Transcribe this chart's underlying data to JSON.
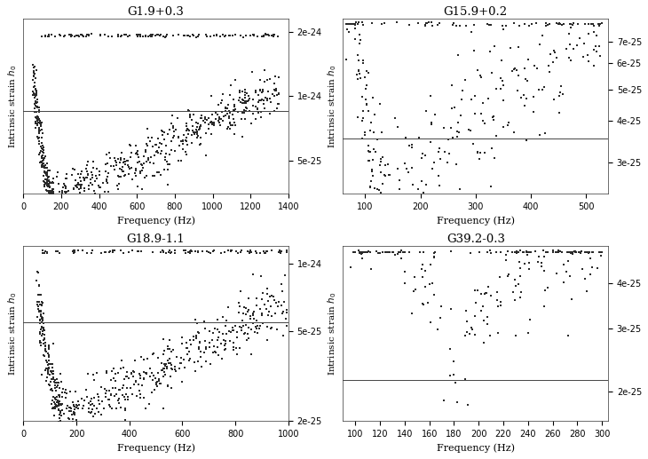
{
  "panels": [
    {
      "title": "G1.9+0.3",
      "xmin": 0,
      "xmax": 1400,
      "ymin": 3.5e-25,
      "ymax": 2.3e-24,
      "hline": 8.5e-25,
      "freq_range": [
        50,
        1350
      ],
      "noise_floor_freq": 160,
      "noise_floor_val": 3.5e-25,
      "power_low": 2.5,
      "power_high": 1.5,
      "scatter_sigma": 0.12,
      "n_points": 700,
      "clipped_yval": 1.92e-24,
      "clipped_n": 120,
      "clipped_freq_min": 50,
      "clipped_freq_max": 1350,
      "yticks": [
        5e-25,
        1e-24,
        2e-24
      ],
      "xticks": [
        0,
        200,
        400,
        600,
        800,
        1000,
        1200,
        1400
      ],
      "seed": 42
    },
    {
      "title": "G15.9+0.2",
      "xmin": 60,
      "xmax": 540,
      "ymin": 2.4e-25,
      "ymax": 8.2e-25,
      "hline": 3.55e-25,
      "freq_range": [
        65,
        530
      ],
      "noise_floor_freq": 140,
      "noise_floor_val": 2.55e-25,
      "power_low": 2.0,
      "power_high": 1.3,
      "scatter_sigma": 0.25,
      "n_points": 300,
      "clipped_yval": 7.9e-25,
      "clipped_n": 50,
      "clipped_freq_min": 65,
      "clipped_freq_max": 530,
      "yticks": [
        3e-25,
        4e-25,
        5e-25,
        6e-25,
        7e-25
      ],
      "xticks": [
        100,
        200,
        300,
        400,
        500
      ],
      "seed": 43
    },
    {
      "title": "G18.9-1.1",
      "xmin": 0,
      "xmax": 1000,
      "ymin": 2e-25,
      "ymax": 1.2e-24,
      "hline": 5.5e-25,
      "freq_range": [
        50,
        1000
      ],
      "noise_floor_freq": 150,
      "noise_floor_val": 2.2e-25,
      "power_low": 2.5,
      "power_high": 1.5,
      "scatter_sigma": 0.15,
      "n_points": 600,
      "clipped_yval": 1.13e-24,
      "clipped_n": 100,
      "clipped_freq_min": 50,
      "clipped_freq_max": 1000,
      "yticks": [
        2e-25,
        5e-25,
        1e-24
      ],
      "xticks": [
        0,
        200,
        400,
        600,
        800,
        1000
      ],
      "seed": 44
    },
    {
      "title": "G39.2-0.3",
      "xmin": 90,
      "xmax": 305,
      "ymin": 1.65e-25,
      "ymax": 5.1e-25,
      "hline": 2.15e-25,
      "freq_range": [
        95,
        300
      ],
      "noise_floor_freq": 180,
      "noise_floor_val": 1.85e-25,
      "power_low": 0.5,
      "power_high": 0.5,
      "scatter_sigma": 0.2,
      "n_points": 200,
      "clipped_yval": 4.9e-25,
      "clipped_n": 35,
      "clipped_freq_min": 95,
      "clipped_freq_max": 300,
      "yticks": [
        2e-25,
        3e-25,
        4e-25
      ],
      "xticks": [
        100,
        120,
        140,
        160,
        180,
        200,
        220,
        240,
        260,
        280,
        300
      ],
      "seed": 45
    }
  ],
  "marker_size": 1.5,
  "marker_color": "#2a2a2a",
  "hline_color": "#444444",
  "background": "#ffffff"
}
